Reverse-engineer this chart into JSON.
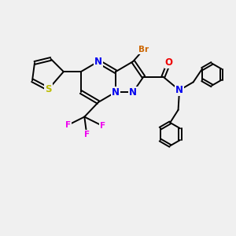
{
  "bg_color": "#f0f0f0",
  "bond_color": "#000000",
  "bond_lw": 1.4,
  "atom_colors": {
    "N": "#0000ee",
    "S": "#bbbb00",
    "O": "#ee0000",
    "Br": "#cc6600",
    "F": "#ee00ee",
    "C": "#000000"
  },
  "font_size_large": 8.5,
  "font_size_small": 7.5
}
